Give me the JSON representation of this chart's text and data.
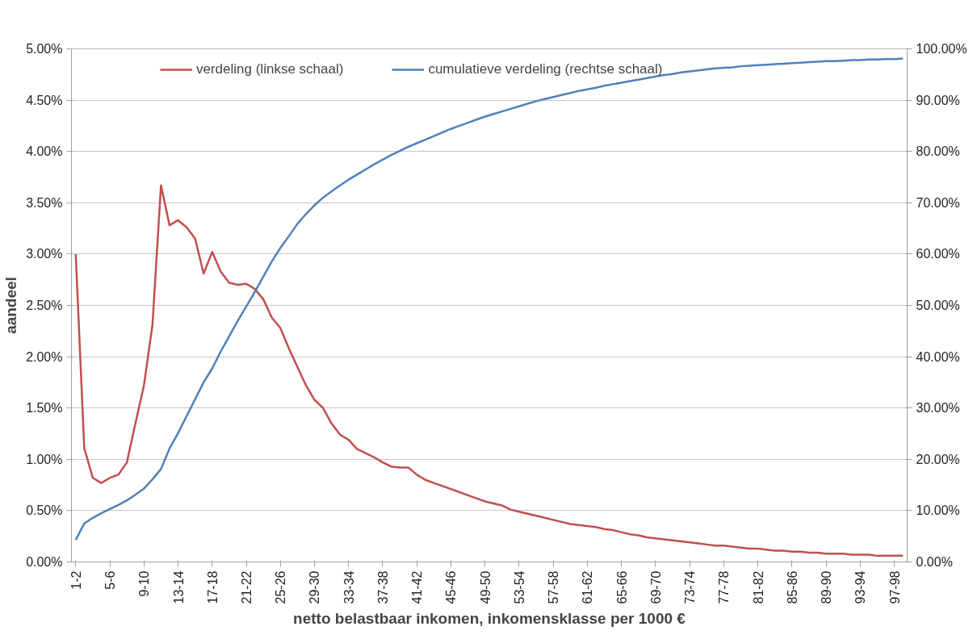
{
  "chart_data": {
    "type": "line",
    "xlabel": "netto belastbaar inkomen, inkomensklasse per 1000 €",
    "ylabel": "aandeel",
    "categories": [
      "1-2",
      null,
      null,
      null,
      "5-6",
      null,
      null,
      null,
      "9-10",
      null,
      null,
      null,
      "13-14",
      null,
      null,
      null,
      "17-18",
      null,
      null,
      null,
      "21-22",
      null,
      null,
      null,
      "25-26",
      null,
      null,
      null,
      "29-30",
      null,
      null,
      null,
      "33-34",
      null,
      null,
      null,
      "37-38",
      null,
      null,
      null,
      "41-42",
      null,
      null,
      null,
      "45-46",
      null,
      null,
      null,
      "49-50",
      null,
      null,
      null,
      "53-54",
      null,
      null,
      null,
      "57-58",
      null,
      null,
      null,
      "61-62",
      null,
      null,
      null,
      "65-66",
      null,
      null,
      null,
      "69-70",
      null,
      null,
      null,
      "73-74",
      null,
      null,
      null,
      "77-78",
      null,
      null,
      null,
      "81-82",
      null,
      null,
      null,
      "85-86",
      null,
      null,
      null,
      "89-90",
      null,
      null,
      null,
      "93-94",
      null,
      null,
      null,
      "97-98",
      null
    ],
    "series": [
      {
        "name": "verdeling (linkse schaal)",
        "color": "#c0504d",
        "values": [
          3.0,
          1.11,
          0.82,
          0.77,
          0.82,
          0.85,
          0.97,
          1.35,
          1.72,
          2.31,
          3.67,
          3.28,
          3.33,
          3.26,
          3.15,
          2.81,
          3.02,
          2.83,
          2.72,
          2.7,
          2.71,
          2.66,
          2.56,
          2.38,
          2.28,
          2.08,
          1.9,
          1.72,
          1.58,
          1.5,
          1.35,
          1.24,
          1.19,
          1.1,
          1.06,
          1.02,
          0.97,
          0.93,
          0.92,
          0.92,
          0.85,
          0.8,
          0.77,
          0.74,
          0.71,
          0.68,
          0.65,
          0.62,
          0.59,
          0.57,
          0.55,
          0.51,
          0.49,
          0.47,
          0.45,
          0.43,
          0.41,
          0.39,
          0.37,
          0.36,
          0.35,
          0.34,
          0.32,
          0.31,
          0.29,
          0.27,
          0.26,
          0.24,
          0.23,
          0.22,
          0.21,
          0.2,
          0.19,
          0.18,
          0.17,
          0.16,
          0.16,
          0.15,
          0.14,
          0.13,
          0.13,
          0.12,
          0.11,
          0.11,
          0.1,
          0.1,
          0.09,
          0.09,
          0.08,
          0.08,
          0.08,
          0.07,
          0.07,
          0.07,
          0.06,
          0.06,
          0.06,
          0.06
        ]
      },
      {
        "name": "cumulatieve verdeling (rechtse schaal)",
        "color": "#4f81bd",
        "axis": "y2",
        "values": [
          4.3,
          7.5,
          8.6,
          9.5,
          10.3,
          11.1,
          12.0,
          13.1,
          14.3,
          16.1,
          18.1,
          22.1,
          25.1,
          28.4,
          31.7,
          35.0,
          37.7,
          41.0,
          44.0,
          47.0,
          49.8,
          52.6,
          55.6,
          58.6,
          61.2,
          63.5,
          65.9,
          67.8,
          69.5,
          71.0,
          72.2,
          73.4,
          74.5,
          75.5,
          76.5,
          77.5,
          78.4,
          79.3,
          80.1,
          80.9,
          81.6,
          82.3,
          83.0,
          83.7,
          84.4,
          85.0,
          85.6,
          86.2,
          86.8,
          87.3,
          87.8,
          88.3,
          88.8,
          89.3,
          89.8,
          90.2,
          90.6,
          91.0,
          91.4,
          91.8,
          92.1,
          92.4,
          92.8,
          93.1,
          93.4,
          93.7,
          94.0,
          94.3,
          94.6,
          94.9,
          95.1,
          95.4,
          95.6,
          95.8,
          96.0,
          96.2,
          96.3,
          96.4,
          96.6,
          96.7,
          96.8,
          96.9,
          97.0,
          97.1,
          97.2,
          97.3,
          97.4,
          97.5,
          97.6,
          97.6,
          97.7,
          97.8,
          97.8,
          97.9,
          97.9,
          98.0,
          98.0,
          98.1
        ]
      }
    ],
    "ylim": [
      0,
      5
    ],
    "yticks": [
      {
        "value": 0,
        "label": "0.00%"
      },
      {
        "value": 0.5,
        "label": "0.50%"
      },
      {
        "value": 1,
        "label": "1.00%"
      },
      {
        "value": 1.5,
        "label": "1.50%"
      },
      {
        "value": 2,
        "label": "2.00%"
      },
      {
        "value": 2.5,
        "label": "2.50%"
      },
      {
        "value": 3,
        "label": "3.00%"
      },
      {
        "value": 3.5,
        "label": "3.50%"
      },
      {
        "value": 4,
        "label": "4.00%"
      },
      {
        "value": 4.5,
        "label": "4.50%"
      },
      {
        "value": 5,
        "label": "5.00%"
      }
    ],
    "y2lim": [
      0,
      100
    ],
    "y2ticks": [
      {
        "value": 0,
        "label": "0.00%"
      },
      {
        "value": 10,
        "label": "10.00%"
      },
      {
        "value": 20,
        "label": "20.00%"
      },
      {
        "value": 30,
        "label": "30.00%"
      },
      {
        "value": 40,
        "label": "40.00%"
      },
      {
        "value": 50,
        "label": "50.00%"
      },
      {
        "value": 60,
        "label": "60.00%"
      },
      {
        "value": 70,
        "label": "70.00%"
      },
      {
        "value": 80,
        "label": "80.00%"
      },
      {
        "value": 90,
        "label": "90.00%"
      },
      {
        "value": 100,
        "label": "100.00%"
      }
    ],
    "grid": "y",
    "legend": "top"
  }
}
